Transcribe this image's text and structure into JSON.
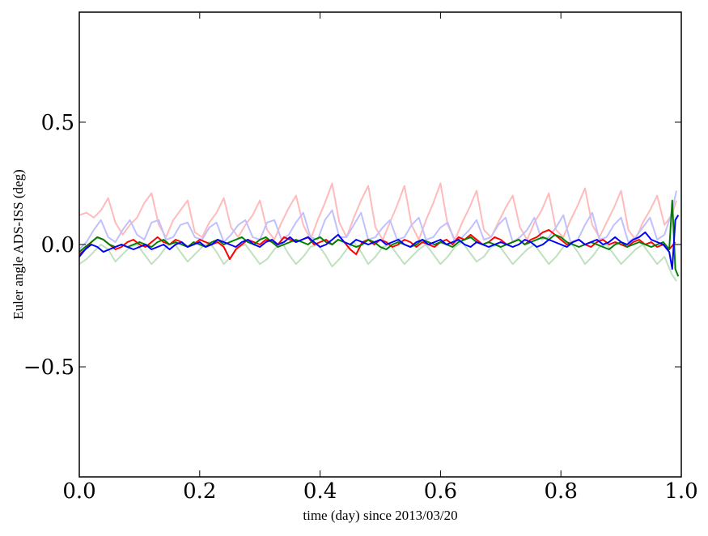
{
  "chart_data": {
    "type": "line",
    "title": "",
    "xlabel": "time (day) since 2013/03/20",
    "ylabel": "Euler angle ADS-ISS (deg)",
    "xlim": [
      0.0,
      1.0
    ],
    "ylim": [
      -0.95,
      0.95
    ],
    "x_ticks": [
      0.0,
      0.2,
      0.4,
      0.6,
      0.8,
      1.0
    ],
    "x_tick_labels": [
      "0.0",
      "0.2",
      "0.4",
      "0.6",
      "0.8",
      "1.0"
    ],
    "y_ticks": [
      -0.5,
      0.0,
      0.5
    ],
    "y_tick_labels": [
      "−0.5",
      "0.0",
      "0.5"
    ],
    "grid": false,
    "legend": "none",
    "series": [
      {
        "color": "#ffbbbb",
        "style": "faint",
        "x": [
          0.0,
          0.012,
          0.024,
          0.036,
          0.048,
          0.06,
          0.072,
          0.084,
          0.096,
          0.108,
          0.12,
          0.132,
          0.144,
          0.156,
          0.168,
          0.18,
          0.192,
          0.204,
          0.216,
          0.228,
          0.24,
          0.252,
          0.264,
          0.276,
          0.288,
          0.3,
          0.312,
          0.324,
          0.336,
          0.348,
          0.36,
          0.372,
          0.384,
          0.396,
          0.408,
          0.42,
          0.432,
          0.444,
          0.456,
          0.468,
          0.48,
          0.492,
          0.504,
          0.516,
          0.528,
          0.54,
          0.552,
          0.564,
          0.576,
          0.588,
          0.6,
          0.612,
          0.624,
          0.636,
          0.648,
          0.66,
          0.672,
          0.684,
          0.696,
          0.708,
          0.72,
          0.732,
          0.744,
          0.756,
          0.768,
          0.78,
          0.792,
          0.804,
          0.816,
          0.828,
          0.84,
          0.852,
          0.864,
          0.876,
          0.888,
          0.9,
          0.912,
          0.924,
          0.936,
          0.948,
          0.96,
          0.972,
          0.984,
          0.992
        ],
        "y": [
          0.12,
          0.13,
          0.11,
          0.14,
          0.19,
          0.09,
          0.04,
          0.08,
          0.11,
          0.17,
          0.21,
          0.08,
          0.03,
          0.1,
          0.14,
          0.18,
          0.05,
          0.03,
          0.09,
          0.13,
          0.19,
          0.07,
          0.03,
          0.08,
          0.12,
          0.18,
          0.06,
          0.02,
          0.09,
          0.15,
          0.2,
          0.08,
          0.02,
          0.1,
          0.17,
          0.25,
          0.09,
          0.03,
          0.11,
          0.18,
          0.24,
          0.07,
          0.02,
          0.09,
          0.16,
          0.24,
          0.08,
          0.02,
          0.1,
          0.17,
          0.25,
          0.08,
          0.02,
          0.09,
          0.15,
          0.22,
          0.06,
          0.03,
          0.09,
          0.15,
          0.2,
          0.07,
          0.02,
          0.09,
          0.14,
          0.21,
          0.06,
          0.03,
          0.1,
          0.16,
          0.23,
          0.08,
          0.03,
          0.09,
          0.15,
          0.22,
          0.06,
          0.02,
          0.09,
          0.14,
          0.2,
          0.08,
          0.12,
          0.18
        ]
      },
      {
        "color": "#c0c0ff",
        "style": "faint",
        "x": [
          0.0,
          0.012,
          0.024,
          0.036,
          0.048,
          0.06,
          0.072,
          0.084,
          0.096,
          0.108,
          0.12,
          0.132,
          0.144,
          0.156,
          0.168,
          0.18,
          0.192,
          0.204,
          0.216,
          0.228,
          0.24,
          0.252,
          0.264,
          0.276,
          0.288,
          0.3,
          0.312,
          0.324,
          0.336,
          0.348,
          0.36,
          0.372,
          0.384,
          0.396,
          0.408,
          0.42,
          0.432,
          0.444,
          0.456,
          0.468,
          0.48,
          0.492,
          0.504,
          0.516,
          0.528,
          0.54,
          0.552,
          0.564,
          0.576,
          0.588,
          0.6,
          0.612,
          0.624,
          0.636,
          0.648,
          0.66,
          0.672,
          0.684,
          0.696,
          0.708,
          0.72,
          0.732,
          0.744,
          0.756,
          0.768,
          0.78,
          0.792,
          0.804,
          0.816,
          0.828,
          0.84,
          0.852,
          0.864,
          0.876,
          0.888,
          0.9,
          0.912,
          0.924,
          0.936,
          0.948,
          0.96,
          0.972,
          0.984,
          0.992
        ],
        "y": [
          -0.02,
          0.01,
          0.06,
          0.1,
          0.03,
          0.01,
          0.06,
          0.1,
          0.04,
          0.02,
          0.09,
          0.1,
          0.02,
          0.03,
          0.08,
          0.09,
          0.03,
          0.02,
          0.07,
          0.09,
          0.01,
          0.04,
          0.08,
          0.1,
          0.03,
          0.02,
          0.09,
          0.1,
          0.02,
          0.04,
          0.09,
          0.13,
          0.03,
          0.02,
          0.1,
          0.14,
          0.03,
          0.03,
          0.08,
          0.13,
          0.02,
          0.03,
          0.07,
          0.1,
          0.02,
          0.03,
          0.08,
          0.11,
          0.02,
          0.03,
          0.07,
          0.09,
          0.01,
          0.03,
          0.06,
          0.1,
          0.02,
          0.03,
          0.08,
          0.11,
          0.01,
          0.03,
          0.06,
          0.11,
          0.02,
          0.03,
          0.07,
          0.12,
          0.01,
          0.02,
          0.08,
          0.13,
          0.02,
          0.03,
          0.08,
          0.11,
          0.01,
          0.03,
          0.07,
          0.11,
          0.02,
          0.04,
          0.13,
          0.22
        ]
      },
      {
        "color": "#c0e0c0",
        "style": "faint",
        "x": [
          0.0,
          0.012,
          0.024,
          0.036,
          0.048,
          0.06,
          0.072,
          0.084,
          0.096,
          0.108,
          0.12,
          0.132,
          0.144,
          0.156,
          0.168,
          0.18,
          0.192,
          0.204,
          0.216,
          0.228,
          0.24,
          0.252,
          0.264,
          0.276,
          0.288,
          0.3,
          0.312,
          0.324,
          0.336,
          0.348,
          0.36,
          0.372,
          0.384,
          0.396,
          0.408,
          0.42,
          0.432,
          0.444,
          0.456,
          0.468,
          0.48,
          0.492,
          0.504,
          0.516,
          0.528,
          0.54,
          0.552,
          0.564,
          0.576,
          0.588,
          0.6,
          0.612,
          0.624,
          0.636,
          0.648,
          0.66,
          0.672,
          0.684,
          0.696,
          0.708,
          0.72,
          0.732,
          0.744,
          0.756,
          0.768,
          0.78,
          0.792,
          0.804,
          0.816,
          0.828,
          0.84,
          0.852,
          0.864,
          0.876,
          0.888,
          0.9,
          0.912,
          0.924,
          0.936,
          0.948,
          0.96,
          0.972,
          0.984,
          0.992
        ],
        "y": [
          -0.08,
          -0.06,
          -0.03,
          0.0,
          -0.02,
          -0.07,
          -0.04,
          -0.01,
          0.0,
          -0.04,
          -0.08,
          -0.05,
          -0.01,
          0.01,
          -0.03,
          -0.07,
          -0.04,
          -0.01,
          0.01,
          -0.03,
          -0.08,
          -0.05,
          -0.01,
          0.0,
          -0.04,
          -0.08,
          -0.06,
          -0.02,
          0.01,
          -0.04,
          -0.08,
          -0.05,
          -0.01,
          0.0,
          -0.04,
          -0.09,
          -0.06,
          -0.02,
          0.01,
          -0.03,
          -0.08,
          -0.05,
          -0.01,
          0.0,
          -0.04,
          -0.08,
          -0.05,
          -0.02,
          0.0,
          -0.04,
          -0.08,
          -0.05,
          -0.01,
          0.01,
          -0.03,
          -0.07,
          -0.05,
          -0.01,
          0.0,
          -0.04,
          -0.08,
          -0.05,
          -0.02,
          0.0,
          -0.04,
          -0.08,
          -0.05,
          -0.01,
          0.01,
          -0.03,
          -0.08,
          -0.05,
          -0.01,
          0.0,
          -0.04,
          -0.08,
          -0.05,
          -0.02,
          0.0,
          -0.04,
          -0.08,
          -0.05,
          -0.12,
          -0.15
        ]
      },
      {
        "color": "#ff0000",
        "style": "bold",
        "x": [
          0.0,
          0.01,
          0.02,
          0.03,
          0.04,
          0.05,
          0.06,
          0.07,
          0.08,
          0.09,
          0.1,
          0.11,
          0.12,
          0.13,
          0.14,
          0.15,
          0.16,
          0.17,
          0.18,
          0.19,
          0.2,
          0.21,
          0.22,
          0.23,
          0.24,
          0.25,
          0.26,
          0.27,
          0.28,
          0.29,
          0.3,
          0.31,
          0.32,
          0.33,
          0.34,
          0.35,
          0.36,
          0.37,
          0.38,
          0.39,
          0.4,
          0.41,
          0.42,
          0.43,
          0.44,
          0.45,
          0.46,
          0.47,
          0.48,
          0.49,
          0.5,
          0.51,
          0.52,
          0.53,
          0.54,
          0.55,
          0.56,
          0.57,
          0.58,
          0.59,
          0.6,
          0.61,
          0.62,
          0.63,
          0.64,
          0.65,
          0.66,
          0.67,
          0.68,
          0.69,
          0.7,
          0.71,
          0.72,
          0.73,
          0.74,
          0.75,
          0.76,
          0.77,
          0.78,
          0.79,
          0.8,
          0.81,
          0.82,
          0.83,
          0.84,
          0.85,
          0.86,
          0.87,
          0.88,
          0.89,
          0.9,
          0.91,
          0.92,
          0.93,
          0.94,
          0.95,
          0.96,
          0.97,
          0.98,
          0.99
        ],
        "y": [
          -0.04,
          -0.02,
          0.01,
          0.03,
          0.02,
          0.0,
          -0.02,
          -0.01,
          0.01,
          0.02,
          0.0,
          -0.01,
          0.01,
          0.03,
          0.01,
          0.0,
          0.02,
          0.01,
          -0.01,
          0.0,
          0.02,
          0.01,
          0.0,
          0.01,
          -0.01,
          -0.06,
          -0.02,
          0.0,
          0.02,
          0.01,
          0.0,
          0.02,
          0.01,
          0.0,
          0.03,
          0.02,
          0.01,
          0.02,
          0.03,
          0.0,
          0.01,
          0.02,
          0.0,
          0.02,
          0.01,
          -0.02,
          -0.04,
          0.01,
          0.02,
          0.0,
          0.02,
          0.01,
          -0.01,
          0.0,
          0.02,
          0.01,
          -0.01,
          0.01,
          0.0,
          -0.01,
          0.01,
          0.02,
          0.0,
          0.03,
          0.02,
          0.04,
          0.02,
          0.0,
          0.01,
          0.03,
          0.02,
          0.0,
          0.01,
          0.02,
          0.0,
          0.02,
          0.03,
          0.05,
          0.06,
          0.04,
          0.02,
          0.0,
          0.01,
          0.02,
          0.0,
          -0.01,
          0.01,
          0.02,
          0.0,
          0.01,
          0.0,
          -0.01,
          0.01,
          0.02,
          0.0,
          0.01,
          -0.01,
          0.0,
          -0.02,
          0.01
        ]
      },
      {
        "color": "#008000",
        "style": "bold",
        "x": [
          0.0,
          0.01,
          0.02,
          0.03,
          0.04,
          0.05,
          0.06,
          0.07,
          0.08,
          0.09,
          0.1,
          0.11,
          0.12,
          0.13,
          0.14,
          0.15,
          0.16,
          0.17,
          0.18,
          0.19,
          0.2,
          0.21,
          0.22,
          0.23,
          0.24,
          0.25,
          0.26,
          0.27,
          0.28,
          0.29,
          0.3,
          0.31,
          0.32,
          0.33,
          0.34,
          0.35,
          0.36,
          0.37,
          0.38,
          0.39,
          0.4,
          0.41,
          0.42,
          0.43,
          0.44,
          0.45,
          0.46,
          0.47,
          0.48,
          0.49,
          0.5,
          0.51,
          0.52,
          0.53,
          0.54,
          0.55,
          0.56,
          0.57,
          0.58,
          0.59,
          0.6,
          0.61,
          0.62,
          0.63,
          0.64,
          0.65,
          0.66,
          0.67,
          0.68,
          0.69,
          0.7,
          0.71,
          0.72,
          0.73,
          0.74,
          0.75,
          0.76,
          0.77,
          0.78,
          0.79,
          0.8,
          0.81,
          0.82,
          0.83,
          0.84,
          0.85,
          0.86,
          0.87,
          0.88,
          0.89,
          0.9,
          0.91,
          0.92,
          0.93,
          0.94,
          0.95,
          0.96,
          0.97,
          0.98,
          0.985,
          0.99,
          0.995
        ],
        "y": [
          -0.03,
          -0.01,
          0.01,
          0.03,
          0.02,
          0.0,
          -0.01,
          0.0,
          -0.01,
          0.0,
          0.01,
          0.0,
          -0.01,
          0.01,
          0.02,
          0.0,
          0.01,
          0.0,
          -0.01,
          0.01,
          0.0,
          -0.01,
          0.01,
          0.02,
          0.0,
          0.01,
          0.02,
          0.03,
          0.01,
          0.0,
          0.02,
          0.03,
          0.01,
          -0.01,
          0.0,
          0.01,
          0.02,
          0.01,
          0.0,
          0.02,
          0.03,
          0.01,
          0.0,
          0.02,
          0.01,
          0.0,
          -0.01,
          0.0,
          0.02,
          0.01,
          -0.01,
          -0.02,
          0.0,
          0.01,
          0.0,
          -0.01,
          0.0,
          0.02,
          0.01,
          0.0,
          0.01,
          0.0,
          -0.01,
          0.01,
          0.02,
          0.03,
          0.01,
          0.0,
          0.01,
          0.0,
          -0.01,
          0.0,
          0.01,
          0.02,
          0.0,
          0.01,
          0.02,
          0.03,
          0.02,
          0.04,
          0.03,
          0.01,
          0.0,
          -0.01,
          0.0,
          0.01,
          0.0,
          -0.01,
          -0.02,
          0.0,
          0.01,
          -0.01,
          0.0,
          0.01,
          0.0,
          -0.01,
          0.0,
          0.01,
          -0.02,
          0.18,
          -0.1,
          -0.13
        ]
      },
      {
        "color": "#0000ff",
        "style": "bold",
        "x": [
          0.0,
          0.01,
          0.02,
          0.03,
          0.04,
          0.05,
          0.06,
          0.07,
          0.08,
          0.09,
          0.1,
          0.11,
          0.12,
          0.13,
          0.14,
          0.15,
          0.16,
          0.17,
          0.18,
          0.19,
          0.2,
          0.21,
          0.22,
          0.23,
          0.24,
          0.25,
          0.26,
          0.27,
          0.28,
          0.29,
          0.3,
          0.31,
          0.32,
          0.33,
          0.34,
          0.35,
          0.36,
          0.37,
          0.38,
          0.39,
          0.4,
          0.41,
          0.42,
          0.43,
          0.44,
          0.45,
          0.46,
          0.47,
          0.48,
          0.49,
          0.5,
          0.51,
          0.52,
          0.53,
          0.54,
          0.55,
          0.56,
          0.57,
          0.58,
          0.59,
          0.6,
          0.61,
          0.62,
          0.63,
          0.64,
          0.65,
          0.66,
          0.67,
          0.68,
          0.69,
          0.7,
          0.71,
          0.72,
          0.73,
          0.74,
          0.75,
          0.76,
          0.77,
          0.78,
          0.79,
          0.8,
          0.81,
          0.82,
          0.83,
          0.84,
          0.85,
          0.86,
          0.87,
          0.88,
          0.89,
          0.9,
          0.91,
          0.92,
          0.93,
          0.94,
          0.95,
          0.96,
          0.97,
          0.98,
          0.985,
          0.99,
          0.995
        ],
        "y": [
          -0.05,
          -0.02,
          0.0,
          -0.01,
          -0.03,
          -0.02,
          -0.01,
          0.0,
          -0.01,
          -0.02,
          -0.01,
          0.0,
          -0.02,
          -0.01,
          0.0,
          -0.02,
          0.0,
          0.01,
          -0.01,
          0.0,
          0.01,
          -0.01,
          0.0,
          0.02,
          0.01,
          0.0,
          -0.01,
          0.01,
          0.02,
          0.0,
          -0.01,
          0.01,
          0.02,
          0.0,
          0.01,
          0.03,
          0.01,
          0.02,
          0.03,
          0.01,
          -0.01,
          0.0,
          0.02,
          0.04,
          0.01,
          0.0,
          0.02,
          0.01,
          0.0,
          0.01,
          0.02,
          0.0,
          0.01,
          0.02,
          0.0,
          -0.01,
          0.01,
          0.02,
          0.0,
          0.01,
          0.02,
          0.0,
          0.01,
          0.02,
          0.0,
          -0.01,
          0.01,
          0.0,
          -0.01,
          0.0,
          0.01,
          0.0,
          -0.01,
          0.0,
          0.02,
          0.01,
          -0.01,
          0.0,
          0.02,
          0.01,
          0.0,
          -0.01,
          0.01,
          0.02,
          0.0,
          0.01,
          0.02,
          0.0,
          0.01,
          0.03,
          0.01,
          0.0,
          0.02,
          0.03,
          0.05,
          0.02,
          0.01,
          0.0,
          -0.03,
          -0.1,
          0.1,
          0.12
        ]
      }
    ]
  }
}
